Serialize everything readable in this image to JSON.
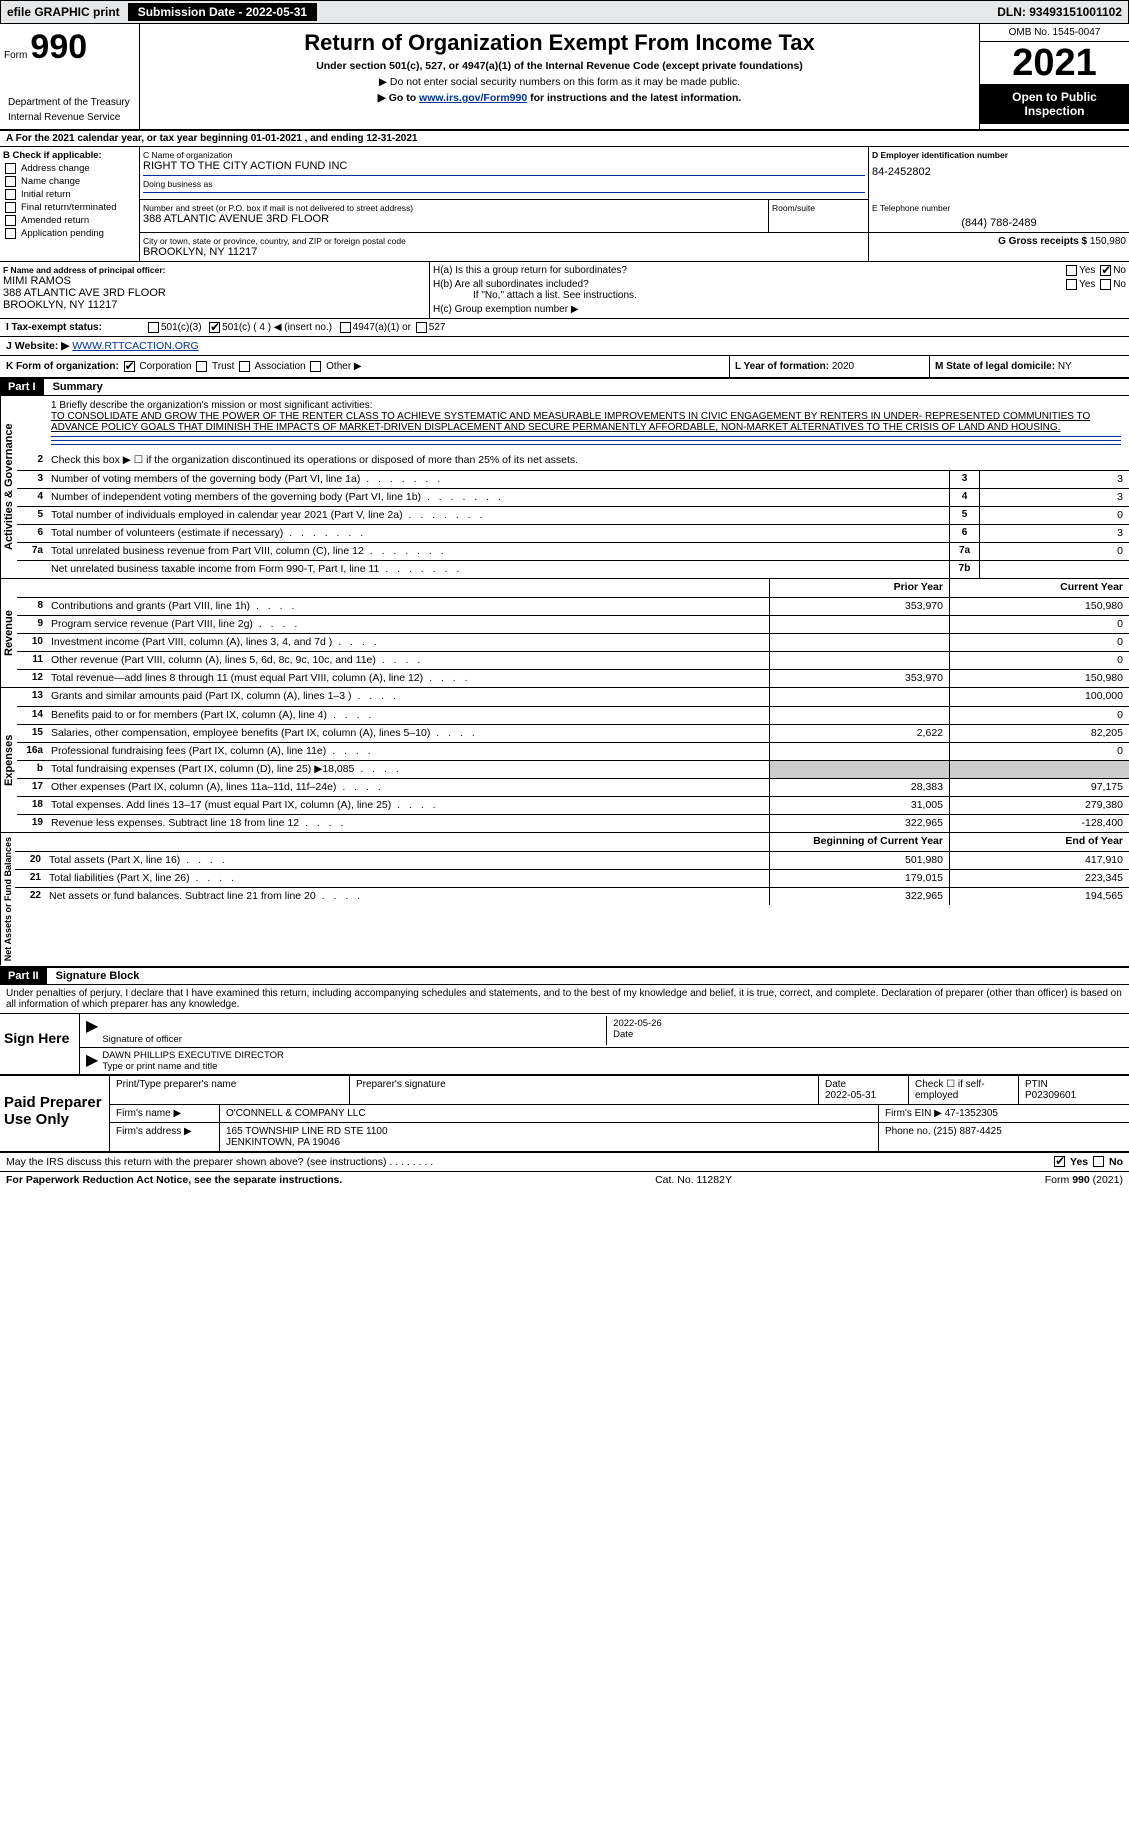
{
  "topbar": {
    "efile": "efile GRAPHIC print",
    "submission_label": "Submission Date - 2022-05-31",
    "dln": "DLN: 93493151001102"
  },
  "header": {
    "form_prefix": "Form",
    "form_number": "990",
    "title": "Return of Organization Exempt From Income Tax",
    "sub1": "Under section 501(c), 527, or 4947(a)(1) of the Internal Revenue Code (except private foundations)",
    "sub2": "▶ Do not enter social security numbers on this form as it may be made public.",
    "sub3_prefix": "▶ Go to ",
    "sub3_link": "www.irs.gov/Form990",
    "sub3_suffix": " for instructions and the latest information.",
    "omb": "OMB No. 1545-0047",
    "year": "2021",
    "open_public": "Open to Public Inspection",
    "dept1": "Department of the Treasury",
    "dept2": "Internal Revenue Service"
  },
  "period": "A For the 2021 calendar year, or tax year beginning 01-01-2021    , and ending 12-31-2021",
  "colB": {
    "label": "B Check if applicable:",
    "opts": [
      "Address change",
      "Name change",
      "Initial return",
      "Final return/terminated",
      "Amended return",
      "Application pending"
    ]
  },
  "orgC": {
    "label": "C Name of organization",
    "name": "RIGHT TO THE CITY ACTION FUND INC",
    "dba_label": "Doing business as",
    "street_label": "Number and street (or P.O. box if mail is not delivered to street address)",
    "street": "388 ATLANTIC AVENUE 3RD FLOOR",
    "room_label": "Room/suite",
    "city_label": "City or town, state or province, country, and ZIP or foreign postal code",
    "city": "BROOKLYN, NY  11217"
  },
  "colD": {
    "label": "D Employer identification number",
    "value": "84-2452802"
  },
  "colE": {
    "label": "E Telephone number",
    "value": "(844) 788-2489"
  },
  "colG": {
    "label": "G Gross receipts $",
    "value": "150,980"
  },
  "colF": {
    "label": "F  Name and address of principal officer:",
    "name": "MIMI RAMOS",
    "addr1": "388 ATLANTIC AVE 3RD FLOOR",
    "addr2": "BROOKLYN, NY  11217"
  },
  "colH": {
    "a": "H(a)  Is this a group return for subordinates?",
    "b": "H(b)  Are all subordinates included?",
    "b_note": "If \"No,\" attach a list. See instructions.",
    "c": "H(c)  Group exemption number ▶",
    "yes": "Yes",
    "no": "No"
  },
  "rowI": {
    "label": "I   Tax-exempt status:",
    "o1": "501(c)(3)",
    "o2": "501(c) ( 4 ) ◀ (insert no.)",
    "o3": "4947(a)(1) or",
    "o4": "527"
  },
  "rowJ": {
    "label": "J   Website: ▶",
    "value": "WWW.RTTCACTION.ORG"
  },
  "rowK": {
    "label": "K Form of organization:",
    "o1": "Corporation",
    "o2": "Trust",
    "o3": "Association",
    "o4": "Other ▶"
  },
  "rowL": {
    "label": "L Year of formation:",
    "value": "2020"
  },
  "rowM": {
    "label": "M State of legal domicile:",
    "value": "NY"
  },
  "part1": {
    "header": "Part I",
    "title": "Summary"
  },
  "mission": {
    "label": "1  Briefly describe the organization's mission or most significant activities:",
    "text": "TO CONSOLIDATE AND GROW THE POWER OF THE RENTER CLASS TO ACHIEVE SYSTEMATIC AND MEASURABLE IMPROVEMENTS IN CIVIC ENGAGEMENT BY RENTERS IN UNDER- REPRESENTED COMMUNITIES TO ADVANCE POLICY GOALS THAT DIMINISH THE IMPACTS OF MARKET-DRIVEN DISPLACEMENT AND SECURE PERMANENTLY AFFORDABLE, NON-MARKET ALTERNATIVES TO THE CRISIS OF LAND AND HOUSING."
  },
  "side_labels": {
    "gov": "Activities & Governance",
    "rev": "Revenue",
    "exp": "Expenses",
    "net": "Net Assets or Fund Balances"
  },
  "lines_gov": [
    {
      "n": "2",
      "d": "Check this box ▶ ☐ if the organization discontinued its operations or disposed of more than 25% of its net assets."
    },
    {
      "n": "3",
      "d": "Number of voting members of the governing body (Part VI, line 1a)",
      "box": "3",
      "v": "3"
    },
    {
      "n": "4",
      "d": "Number of independent voting members of the governing body (Part VI, line 1b)",
      "box": "4",
      "v": "3"
    },
    {
      "n": "5",
      "d": "Total number of individuals employed in calendar year 2021 (Part V, line 2a)",
      "box": "5",
      "v": "0"
    },
    {
      "n": "6",
      "d": "Total number of volunteers (estimate if necessary)",
      "box": "6",
      "v": "3"
    },
    {
      "n": "7a",
      "d": "Total unrelated business revenue from Part VIII, column (C), line 12",
      "box": "7a",
      "v": "0"
    },
    {
      "n": "",
      "d": "Net unrelated business taxable income from Form 990-T, Part I, line 11",
      "box": "7b",
      "v": ""
    }
  ],
  "col_headers": {
    "prior": "Prior Year",
    "current": "Current Year",
    "beg": "Beginning of Current Year",
    "end": "End of Year"
  },
  "lines_rev": [
    {
      "n": "8",
      "d": "Contributions and grants (Part VIII, line 1h)",
      "p": "353,970",
      "c": "150,980"
    },
    {
      "n": "9",
      "d": "Program service revenue (Part VIII, line 2g)",
      "p": "",
      "c": "0"
    },
    {
      "n": "10",
      "d": "Investment income (Part VIII, column (A), lines 3, 4, and 7d )",
      "p": "",
      "c": "0"
    },
    {
      "n": "11",
      "d": "Other revenue (Part VIII, column (A), lines 5, 6d, 8c, 9c, 10c, and 11e)",
      "p": "",
      "c": "0"
    },
    {
      "n": "12",
      "d": "Total revenue—add lines 8 through 11 (must equal Part VIII, column (A), line 12)",
      "p": "353,970",
      "c": "150,980"
    }
  ],
  "lines_exp": [
    {
      "n": "13",
      "d": "Grants and similar amounts paid (Part IX, column (A), lines 1–3 )",
      "p": "",
      "c": "100,000"
    },
    {
      "n": "14",
      "d": "Benefits paid to or for members (Part IX, column (A), line 4)",
      "p": "",
      "c": "0"
    },
    {
      "n": "15",
      "d": "Salaries, other compensation, employee benefits (Part IX, column (A), lines 5–10)",
      "p": "2,622",
      "c": "82,205"
    },
    {
      "n": "16a",
      "d": "Professional fundraising fees (Part IX, column (A), line 11e)",
      "p": "",
      "c": "0"
    },
    {
      "n": "b",
      "d": "Total fundraising expenses (Part IX, column (D), line 25) ▶18,085",
      "p": "shade",
      "c": "shade"
    },
    {
      "n": "17",
      "d": "Other expenses (Part IX, column (A), lines 11a–11d, 11f–24e)",
      "p": "28,383",
      "c": "97,175"
    },
    {
      "n": "18",
      "d": "Total expenses. Add lines 13–17 (must equal Part IX, column (A), line 25)",
      "p": "31,005",
      "c": "279,380"
    },
    {
      "n": "19",
      "d": "Revenue less expenses. Subtract line 18 from line 12",
      "p": "322,965",
      "c": "-128,400"
    }
  ],
  "lines_net": [
    {
      "n": "20",
      "d": "Total assets (Part X, line 16)",
      "p": "501,980",
      "c": "417,910"
    },
    {
      "n": "21",
      "d": "Total liabilities (Part X, line 26)",
      "p": "179,015",
      "c": "223,345"
    },
    {
      "n": "22",
      "d": "Net assets or fund balances. Subtract line 21 from line 20",
      "p": "322,965",
      "c": "194,565"
    }
  ],
  "part2": {
    "header": "Part II",
    "title": "Signature Block"
  },
  "sig": {
    "text": "Under penalties of perjury, I declare that I have examined this return, including accompanying schedules and statements, and to the best of my knowledge and belief, it is true, correct, and complete. Declaration of preparer (other than officer) is based on all information of which preparer has any knowledge.",
    "sign_here": "Sign Here",
    "sig_label": "Signature of officer",
    "date_label": "Date",
    "date": "2022-05-26",
    "name": "DAWN PHILLIPS  EXECUTIVE DIRECTOR",
    "name_label": "Type or print name and title"
  },
  "prep": {
    "title": "Paid Preparer Use Only",
    "h1": "Print/Type preparer's name",
    "h2": "Preparer's signature",
    "h3": "Date",
    "h3v": "2022-05-31",
    "h4": "Check ☐ if self-employed",
    "h5": "PTIN",
    "h5v": "P02309601",
    "firm_label": "Firm's name    ▶",
    "firm": "O'CONNELL & COMPANY LLC",
    "ein_label": "Firm's EIN ▶",
    "ein": "47-1352305",
    "addr_label": "Firm's address ▶",
    "addr": "165 TOWNSHIP LINE RD STE 1100",
    "addr2": "JENKINTOWN, PA  19046",
    "phone_label": "Phone no.",
    "phone": "(215) 887-4425"
  },
  "may_discuss": "May the IRS discuss this return with the preparer shown above? (see instructions)",
  "footer": {
    "left": "For Paperwork Reduction Act Notice, see the separate instructions.",
    "mid": "Cat. No. 11282Y",
    "right": "Form 990 (2021)"
  }
}
